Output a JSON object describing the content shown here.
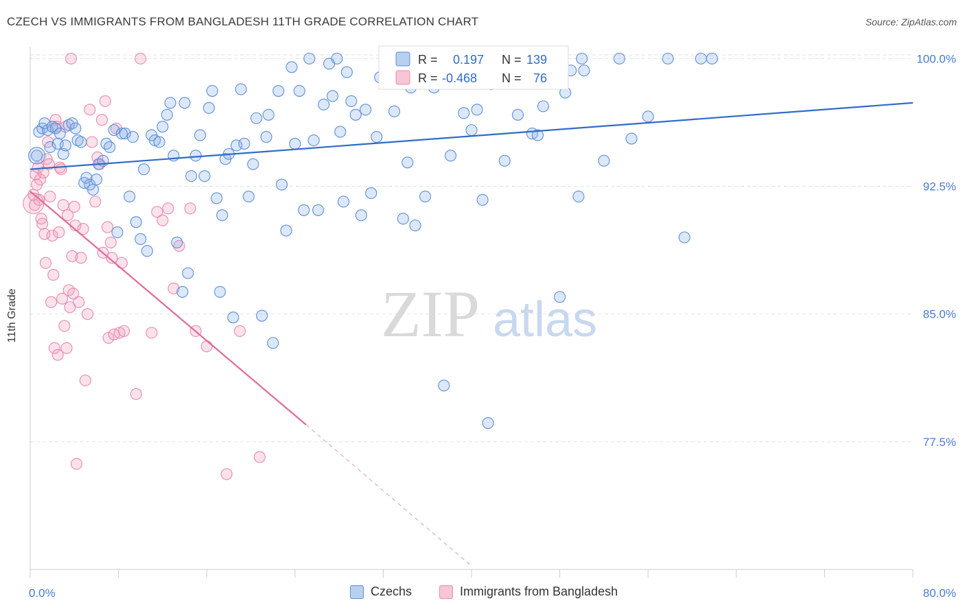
{
  "header": {
    "title": "CZECH VS IMMIGRANTS FROM BANGLADESH 11TH GRADE CORRELATION CHART",
    "source": "Source: ZipAtlas.com"
  },
  "watermark": {
    "zip": "ZIP",
    "atlas": "atlas"
  },
  "legend": {
    "r_label": "R =",
    "n_label": "N =",
    "czechs": {
      "r": "0.197",
      "n": "139"
    },
    "bangladesh": {
      "r": "-0.468",
      "n": "76"
    }
  },
  "bottom_legend": {
    "czechs": "Czechs",
    "bangladesh": "Immigrants from Bangladesh"
  },
  "chart_data": {
    "type": "scatter",
    "ylabel": "11th Grade",
    "xlim": [
      0,
      80
    ],
    "ylim": [
      70,
      100.7
    ],
    "x_tick_labels": [
      "0.0%",
      "80.0%"
    ],
    "y_ticks": [
      {
        "value": 100,
        "label": "100.0%"
      },
      {
        "value": 92.5,
        "label": "92.5%"
      },
      {
        "value": 85,
        "label": "85.0%"
      },
      {
        "value": 77.5,
        "label": "77.5%"
      }
    ],
    "grid": "horizontal dashed",
    "colors": {
      "czechs": "#5b8fd8",
      "czechs_line": "#2f6cc7",
      "bangladesh": "#e88aab",
      "bangladesh_line": "#e06a95"
    },
    "series": [
      {
        "name": "Czechs",
        "trend": {
          "x": [
            0,
            80
          ],
          "y": [
            93.5,
            97.4
          ]
        },
        "points": [
          [
            0.6,
            94.3
          ],
          [
            0.8,
            95.7
          ],
          [
            1.1,
            95.9
          ],
          [
            1.3,
            96.2
          ],
          [
            1.6,
            95.8
          ],
          [
            1.8,
            94.8
          ],
          [
            2.0,
            96.0
          ],
          [
            2.3,
            95.9
          ],
          [
            2.5,
            95.0
          ],
          [
            2.7,
            95.6
          ],
          [
            3.0,
            94.4
          ],
          [
            3.2,
            94.9
          ],
          [
            3.5,
            96.1
          ],
          [
            3.8,
            96.2
          ],
          [
            4.1,
            95.9
          ],
          [
            4.3,
            95.2
          ],
          [
            4.6,
            95.1
          ],
          [
            4.9,
            92.7
          ],
          [
            5.1,
            93.0
          ],
          [
            5.4,
            92.6
          ],
          [
            5.7,
            92.3
          ],
          [
            6.0,
            92.9
          ],
          [
            6.2,
            93.8
          ],
          [
            6.6,
            94.0
          ],
          [
            6.9,
            95.0
          ],
          [
            7.2,
            94.8
          ],
          [
            7.6,
            95.8
          ],
          [
            7.9,
            89.8
          ],
          [
            8.3,
            95.6
          ],
          [
            8.6,
            95.6
          ],
          [
            9.0,
            91.9
          ],
          [
            9.3,
            95.4
          ],
          [
            9.6,
            90.4
          ],
          [
            10.0,
            89.4
          ],
          [
            10.3,
            93.5
          ],
          [
            10.6,
            88.7
          ],
          [
            11.0,
            95.5
          ],
          [
            11.3,
            95.2
          ],
          [
            11.7,
            95.1
          ],
          [
            12.0,
            96.0
          ],
          [
            12.4,
            96.7
          ],
          [
            12.7,
            97.4
          ],
          [
            13.0,
            94.3
          ],
          [
            13.3,
            89.2
          ],
          [
            13.8,
            86.3
          ],
          [
            14.0,
            97.4
          ],
          [
            14.3,
            87.4
          ],
          [
            14.6,
            93.1
          ],
          [
            15.0,
            94.3
          ],
          [
            15.4,
            95.5
          ],
          [
            15.8,
            93.1
          ],
          [
            16.2,
            97.1
          ],
          [
            16.5,
            98.1
          ],
          [
            16.9,
            91.8
          ],
          [
            17.2,
            86.3
          ],
          [
            17.4,
            90.8
          ],
          [
            17.7,
            94.1
          ],
          [
            18.0,
            94.4
          ],
          [
            18.4,
            84.8
          ],
          [
            18.7,
            94.9
          ],
          [
            19.1,
            98.2
          ],
          [
            19.4,
            95.0
          ],
          [
            19.8,
            91.9
          ],
          [
            20.2,
            93.8
          ],
          [
            20.5,
            96.5
          ],
          [
            21.0,
            84.9
          ],
          [
            21.4,
            95.4
          ],
          [
            21.6,
            96.7
          ],
          [
            22.0,
            83.3
          ],
          [
            22.5,
            98.1
          ],
          [
            22.8,
            92.6
          ],
          [
            23.2,
            89.9
          ],
          [
            23.7,
            99.5
          ],
          [
            24.0,
            95.0
          ],
          [
            24.4,
            98.1
          ],
          [
            24.8,
            91.1
          ],
          [
            25.3,
            100.0
          ],
          [
            25.7,
            95.2
          ],
          [
            26.1,
            91.1
          ],
          [
            26.6,
            97.3
          ],
          [
            27.1,
            99.7
          ],
          [
            27.4,
            97.8
          ],
          [
            27.8,
            100.0
          ],
          [
            28.1,
            95.7
          ],
          [
            28.4,
            91.6
          ],
          [
            28.7,
            99.2
          ],
          [
            29.1,
            97.5
          ],
          [
            29.5,
            96.7
          ],
          [
            30.0,
            90.8
          ],
          [
            30.4,
            97.0
          ],
          [
            30.9,
            92.1
          ],
          [
            31.4,
            95.4
          ],
          [
            31.7,
            98.9
          ],
          [
            32.2,
            98.6
          ],
          [
            33.0,
            96.9
          ],
          [
            33.8,
            90.6
          ],
          [
            34.2,
            93.9
          ],
          [
            34.5,
            98.3
          ],
          [
            34.9,
            90.2
          ],
          [
            35.5,
            99.6
          ],
          [
            35.8,
            91.9
          ],
          [
            36.3,
            98.7
          ],
          [
            36.6,
            98.3
          ],
          [
            37.2,
            100.0
          ],
          [
            37.5,
            80.8
          ],
          [
            38.1,
            94.3
          ],
          [
            38.8,
            98.6
          ],
          [
            39.3,
            96.8
          ],
          [
            40.0,
            95.8
          ],
          [
            40.5,
            97.0
          ],
          [
            41.0,
            91.7
          ],
          [
            41.5,
            78.6
          ],
          [
            41.8,
            98.5
          ],
          [
            42.5,
            100.0
          ],
          [
            43.0,
            94.0
          ],
          [
            44.0,
            100.0
          ],
          [
            44.2,
            96.7
          ],
          [
            44.6,
            100.0
          ],
          [
            45.5,
            95.6
          ],
          [
            46.0,
            95.5
          ],
          [
            46.5,
            97.2
          ],
          [
            47.0,
            100.0
          ],
          [
            48.0,
            86.0
          ],
          [
            48.5,
            98.0
          ],
          [
            49.0,
            99.3
          ],
          [
            49.7,
            91.9
          ],
          [
            50.0,
            100.0
          ],
          [
            50.2,
            99.3
          ],
          [
            52.0,
            94.0
          ],
          [
            53.4,
            100.0
          ],
          [
            54.5,
            95.3
          ],
          [
            56.0,
            96.6
          ],
          [
            57.8,
            100.0
          ],
          [
            59.3,
            89.5
          ],
          [
            60.8,
            100.0
          ],
          [
            61.8,
            100.0
          ]
        ]
      },
      {
        "name": "Immigrants from Bangladesh",
        "trend": {
          "x": [
            0,
            25
          ],
          "y": [
            92.2,
            78.5
          ],
          "extension": {
            "x": [
              25,
              40
            ],
            "y": [
              78.5,
              70.2
            ]
          }
        },
        "points": [
          [
            0.3,
            92.0
          ],
          [
            0.4,
            91.4
          ],
          [
            0.5,
            93.2
          ],
          [
            0.6,
            92.6
          ],
          [
            0.7,
            93.6
          ],
          [
            0.8,
            91.7
          ],
          [
            0.9,
            92.9
          ],
          [
            1.0,
            90.6
          ],
          [
            1.1,
            90.3
          ],
          [
            1.2,
            93.3
          ],
          [
            1.3,
            89.7
          ],
          [
            1.4,
            88.0
          ],
          [
            1.5,
            94.1
          ],
          [
            1.6,
            95.1
          ],
          [
            1.7,
            93.8
          ],
          [
            1.8,
            91.9
          ],
          [
            1.9,
            85.7
          ],
          [
            2.0,
            89.6
          ],
          [
            2.1,
            87.3
          ],
          [
            2.2,
            83.0
          ],
          [
            2.3,
            96.4
          ],
          [
            2.4,
            96.0
          ],
          [
            2.5,
            82.6
          ],
          [
            2.6,
            89.8
          ],
          [
            2.7,
            93.6
          ],
          [
            2.8,
            93.5
          ],
          [
            2.9,
            85.9
          ],
          [
            3.0,
            91.4
          ],
          [
            3.1,
            84.3
          ],
          [
            3.2,
            96.0
          ],
          [
            3.3,
            83.0
          ],
          [
            3.4,
            90.8
          ],
          [
            3.5,
            86.4
          ],
          [
            3.6,
            85.4
          ],
          [
            3.7,
            100.0
          ],
          [
            3.8,
            88.4
          ],
          [
            3.9,
            86.2
          ],
          [
            4.0,
            91.3
          ],
          [
            4.1,
            90.2
          ],
          [
            4.2,
            76.2
          ],
          [
            4.4,
            85.7
          ],
          [
            4.6,
            88.3
          ],
          [
            4.8,
            90.0
          ],
          [
            5.0,
            81.1
          ],
          [
            5.2,
            85.0
          ],
          [
            5.4,
            97.0
          ],
          [
            5.6,
            95.1
          ],
          [
            5.9,
            91.6
          ],
          [
            6.1,
            94.2
          ],
          [
            6.3,
            93.8
          ],
          [
            6.5,
            96.4
          ],
          [
            6.6,
            88.6
          ],
          [
            6.8,
            97.5
          ],
          [
            7.0,
            90.1
          ],
          [
            7.1,
            83.6
          ],
          [
            7.3,
            89.2
          ],
          [
            7.4,
            88.3
          ],
          [
            7.6,
            83.8
          ],
          [
            7.8,
            95.9
          ],
          [
            8.1,
            83.9
          ],
          [
            8.3,
            88.0
          ],
          [
            8.5,
            84.0
          ],
          [
            9.6,
            80.3
          ],
          [
            10.0,
            100.0
          ],
          [
            11.0,
            83.9
          ],
          [
            11.5,
            91.0
          ],
          [
            12.0,
            90.5
          ],
          [
            12.5,
            91.2
          ],
          [
            13.0,
            86.5
          ],
          [
            13.5,
            89.0
          ],
          [
            14.5,
            91.2
          ],
          [
            15.0,
            84.0
          ],
          [
            16.0,
            83.1
          ],
          [
            17.8,
            75.6
          ],
          [
            19.0,
            84.0
          ],
          [
            20.8,
            76.6
          ]
        ]
      }
    ]
  }
}
